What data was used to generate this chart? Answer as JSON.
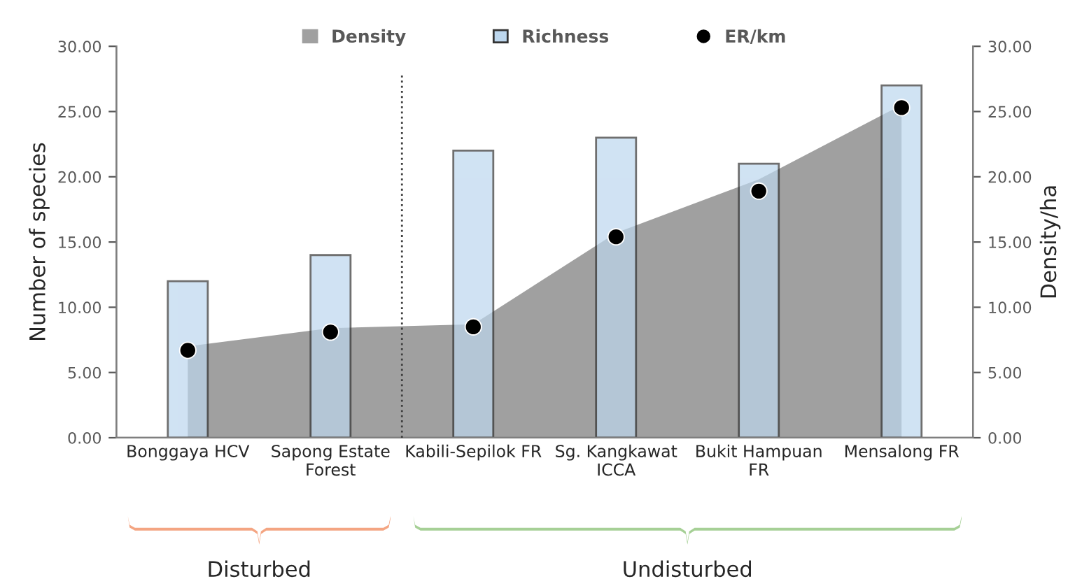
{
  "chart_data": {
    "type": "bar",
    "categories": [
      "Bonggaya HCV",
      "Sapong Estate\nForest",
      "Kabili-Sepilok FR",
      "Sg. Kangkawat\nICCA",
      "Bukit Hampuan\nFR",
      "Mensalong FR"
    ],
    "series": [
      {
        "name": "Density",
        "type": "area",
        "axis": "y2",
        "color": "#a0a0a0",
        "values": [
          7.0,
          8.4,
          8.7,
          15.7,
          19.8,
          25.5
        ]
      },
      {
        "name": "Richness",
        "color": "#bdd7ee",
        "values": [
          12,
          14,
          22,
          23,
          21,
          27
        ]
      },
      {
        "name": "ER/km",
        "type": "scatter",
        "marker": "circle",
        "color": "#000000",
        "values": [
          6.7,
          8.1,
          8.5,
          15.4,
          18.9,
          25.3
        ]
      }
    ],
    "ylabel": "Number of species",
    "y2label": "Density/ha",
    "ylim": [
      0,
      30
    ],
    "yticks": [
      {
        "value": 0,
        "label": "0.00"
      },
      {
        "value": 5,
        "label": "5.00"
      },
      {
        "value": 10,
        "label": "10.00"
      },
      {
        "value": 15,
        "label": "15.00"
      },
      {
        "value": 20,
        "label": "20.00"
      },
      {
        "value": 25,
        "label": "25.00"
      },
      {
        "value": 30,
        "label": "30.00"
      }
    ],
    "y2lim": [
      0,
      30
    ],
    "y2ticks": [
      {
        "value": 0,
        "label": "0.00"
      },
      {
        "value": 5,
        "label": "5.00"
      },
      {
        "value": 10,
        "label": "10.00"
      },
      {
        "value": 15,
        "label": "15.00"
      },
      {
        "value": 20,
        "label": "20.00"
      },
      {
        "value": 25,
        "label": "25.00"
      },
      {
        "value": 30,
        "label": "30.00"
      }
    ],
    "annotations": [
      "Disturbed",
      "Undisturbed"
    ],
    "legend": "top",
    "grid": false
  }
}
